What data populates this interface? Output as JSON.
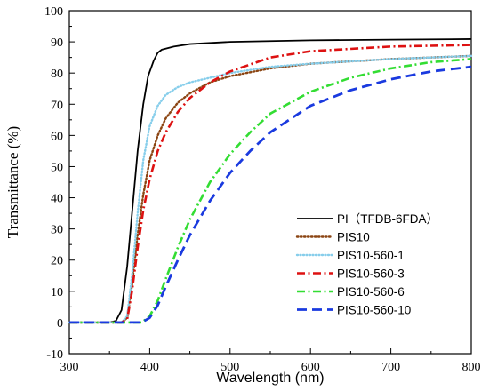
{
  "chart_data": {
    "type": "line",
    "xlabel": "Wavelength (nm)",
    "ylabel": "Transmittance (%)",
    "xlim": [
      300,
      800
    ],
    "ylim": [
      -10,
      100
    ],
    "xticks": [
      300,
      400,
      500,
      600,
      700,
      800
    ],
    "yticks": [
      -10,
      0,
      10,
      20,
      30,
      40,
      50,
      60,
      70,
      80,
      90,
      100
    ],
    "grid": false,
    "legend_position": "bottom-right",
    "series": [
      {
        "name": "PI（TFDB-6FDA）",
        "color": "#000000",
        "dash": "solid",
        "points": [
          [
            300,
            0
          ],
          [
            350,
            0
          ],
          [
            358,
            0.5
          ],
          [
            365,
            4
          ],
          [
            372,
            18
          ],
          [
            378,
            35
          ],
          [
            385,
            55
          ],
          [
            392,
            70
          ],
          [
            398,
            79
          ],
          [
            405,
            84
          ],
          [
            410,
            86.5
          ],
          [
            415,
            87.5
          ],
          [
            430,
            88.5
          ],
          [
            450,
            89.3
          ],
          [
            500,
            90
          ],
          [
            600,
            90.5
          ],
          [
            700,
            90.7
          ],
          [
            800,
            90.9
          ]
        ]
      },
      {
        "name": "PIS10",
        "color": "#8b4513",
        "dash": "dotted",
        "points": [
          [
            300,
            0
          ],
          [
            365,
            0
          ],
          [
            372,
            1.5
          ],
          [
            378,
            12
          ],
          [
            385,
            28
          ],
          [
            392,
            41
          ],
          [
            400,
            52
          ],
          [
            410,
            60
          ],
          [
            420,
            65.5
          ],
          [
            435,
            70.5
          ],
          [
            450,
            73.5
          ],
          [
            475,
            77
          ],
          [
            500,
            79
          ],
          [
            550,
            81.5
          ],
          [
            600,
            83
          ],
          [
            700,
            84.5
          ],
          [
            800,
            85.5
          ]
        ]
      },
      {
        "name": "PIS10-560-1",
        "color": "#87ceeb",
        "dash": "dotted-fine",
        "points": [
          [
            300,
            0
          ],
          [
            365,
            0
          ],
          [
            372,
            2
          ],
          [
            378,
            15
          ],
          [
            385,
            35
          ],
          [
            392,
            52
          ],
          [
            400,
            63
          ],
          [
            410,
            69.5
          ],
          [
            420,
            73
          ],
          [
            435,
            75.5
          ],
          [
            450,
            77
          ],
          [
            475,
            78.5
          ],
          [
            500,
            80
          ],
          [
            550,
            82
          ],
          [
            600,
            83
          ],
          [
            700,
            84.5
          ],
          [
            800,
            85.5
          ]
        ]
      },
      {
        "name": "PIS10-560-3",
        "color": "#dd1111",
        "dash": "dashdot",
        "points": [
          [
            300,
            0
          ],
          [
            365,
            0
          ],
          [
            372,
            1
          ],
          [
            378,
            10
          ],
          [
            385,
            24
          ],
          [
            392,
            36
          ],
          [
            400,
            46
          ],
          [
            410,
            55
          ],
          [
            420,
            61
          ],
          [
            435,
            67.5
          ],
          [
            450,
            72
          ],
          [
            475,
            77
          ],
          [
            500,
            80.5
          ],
          [
            550,
            85
          ],
          [
            600,
            87
          ],
          [
            700,
            88.5
          ],
          [
            800,
            89
          ]
        ]
      },
      {
        "name": "PIS10-560-6",
        "color": "#33dd33",
        "dash": "dashdot",
        "points": [
          [
            300,
            0
          ],
          [
            390,
            0
          ],
          [
            400,
            2
          ],
          [
            410,
            7
          ],
          [
            420,
            14
          ],
          [
            435,
            24
          ],
          [
            450,
            33
          ],
          [
            475,
            45
          ],
          [
            500,
            54
          ],
          [
            525,
            61
          ],
          [
            550,
            67
          ],
          [
            600,
            74
          ],
          [
            650,
            78.5
          ],
          [
            700,
            81.5
          ],
          [
            750,
            83.5
          ],
          [
            800,
            84.5
          ]
        ]
      },
      {
        "name": "PIS10-560-10",
        "color": "#1a3adf",
        "dash": "dashed",
        "points": [
          [
            300,
            0
          ],
          [
            390,
            0
          ],
          [
            400,
            1.5
          ],
          [
            410,
            5.5
          ],
          [
            420,
            11.5
          ],
          [
            435,
            20
          ],
          [
            450,
            28
          ],
          [
            475,
            39
          ],
          [
            500,
            48
          ],
          [
            525,
            55
          ],
          [
            550,
            61
          ],
          [
            600,
            69.5
          ],
          [
            650,
            74.5
          ],
          [
            700,
            78
          ],
          [
            750,
            80.5
          ],
          [
            800,
            82
          ]
        ]
      }
    ]
  }
}
